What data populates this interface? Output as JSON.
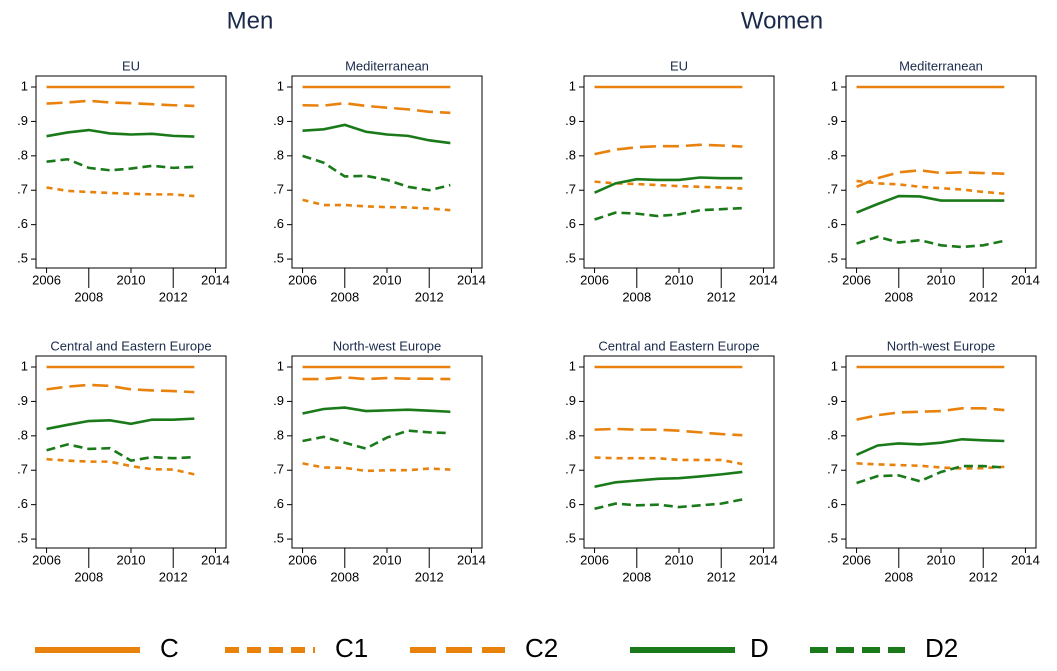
{
  "headers": [
    "Men",
    "Women"
  ],
  "chart_data": [
    {
      "type": "line",
      "title": "EU",
      "x": [
        2006,
        2007,
        2008,
        2009,
        2010,
        2011,
        2012,
        2013
      ],
      "xlim": [
        2005.5,
        2014.5
      ],
      "xticks": [
        2006,
        2008,
        2010,
        2012,
        2014
      ],
      "ylim": [
        0.474,
        1.032
      ],
      "yticks": [
        {
          "value": 0.5,
          "label": ".5"
        },
        {
          "value": 0.6,
          "label": ".6"
        },
        {
          "value": 0.7,
          "label": ".7"
        },
        {
          "value": 0.8,
          "label": ".8"
        },
        {
          "value": 0.9,
          "label": ".9"
        },
        1
      ],
      "series": [
        {
          "name": "C",
          "color": "#e8820c",
          "dash": "solid",
          "values": [
            1,
            1,
            1,
            1,
            1,
            1,
            1,
            1
          ]
        },
        {
          "name": "C1",
          "color": "#e8820c",
          "dash": "short",
          "values": [
            0.708,
            0.698,
            0.695,
            0.692,
            0.69,
            0.688,
            0.688,
            0.683
          ]
        },
        {
          "name": "C2",
          "color": "#e8820c",
          "dash": "long",
          "values": [
            0.952,
            0.955,
            0.96,
            0.955,
            0.953,
            0.95,
            0.947,
            0.945
          ]
        },
        {
          "name": "D",
          "color": "#1a7a1a",
          "dash": "solid",
          "values": [
            0.857,
            0.868,
            0.875,
            0.865,
            0.862,
            0.864,
            0.858,
            0.856
          ]
        },
        {
          "name": "D2",
          "color": "#1a7a1a",
          "dash": "medium",
          "values": [
            0.783,
            0.79,
            0.765,
            0.758,
            0.763,
            0.771,
            0.765,
            0.768
          ]
        }
      ]
    },
    {
      "type": "line",
      "title": "Mediterranean",
      "x": [
        2006,
        2007,
        2008,
        2009,
        2010,
        2011,
        2012,
        2013
      ],
      "xlim": [
        2005.5,
        2014.5
      ],
      "xticks": [
        2006,
        2008,
        2010,
        2012,
        2014
      ],
      "ylim": [
        0.474,
        1.032
      ],
      "yticks": [
        {
          "value": 0.5,
          "label": ".5"
        },
        {
          "value": 0.6,
          "label": ".6"
        },
        {
          "value": 0.7,
          "label": ".7"
        },
        {
          "value": 0.8,
          "label": ".8"
        },
        {
          "value": 0.9,
          "label": ".9"
        },
        1
      ],
      "series": [
        {
          "name": "C",
          "color": "#e8820c",
          "dash": "solid",
          "values": [
            1,
            1,
            1,
            1,
            1,
            1,
            1,
            1
          ]
        },
        {
          "name": "C1",
          "color": "#e8820c",
          "dash": "short",
          "values": [
            0.672,
            0.657,
            0.657,
            0.653,
            0.651,
            0.65,
            0.647,
            0.642
          ]
        },
        {
          "name": "C2",
          "color": "#e8820c",
          "dash": "long",
          "values": [
            0.947,
            0.946,
            0.953,
            0.945,
            0.94,
            0.935,
            0.928,
            0.925
          ]
        },
        {
          "name": "D",
          "color": "#1a7a1a",
          "dash": "solid",
          "values": [
            0.873,
            0.877,
            0.89,
            0.87,
            0.862,
            0.858,
            0.845,
            0.837
          ]
        },
        {
          "name": "D2",
          "color": "#1a7a1a",
          "dash": "medium",
          "values": [
            0.8,
            0.78,
            0.74,
            0.742,
            0.73,
            0.71,
            0.7,
            0.715
          ]
        }
      ]
    },
    {
      "type": "line",
      "title": "EU",
      "x": [
        2006,
        2007,
        2008,
        2009,
        2010,
        2011,
        2012,
        2013
      ],
      "xlim": [
        2005.5,
        2014.5
      ],
      "xticks": [
        2006,
        2008,
        2010,
        2012,
        2014
      ],
      "ylim": [
        0.474,
        1.032
      ],
      "yticks": [
        {
          "value": 0.5,
          "label": ".5"
        },
        {
          "value": 0.6,
          "label": ".6"
        },
        {
          "value": 0.7,
          "label": ".7"
        },
        {
          "value": 0.8,
          "label": ".8"
        },
        {
          "value": 0.9,
          "label": ".9"
        },
        1
      ],
      "series": [
        {
          "name": "C",
          "color": "#e8820c",
          "dash": "solid",
          "values": [
            1,
            1,
            1,
            1,
            1,
            1,
            1,
            1
          ]
        },
        {
          "name": "C1",
          "color": "#e8820c",
          "dash": "short",
          "values": [
            0.725,
            0.72,
            0.718,
            0.715,
            0.712,
            0.71,
            0.708,
            0.705
          ]
        },
        {
          "name": "C2",
          "color": "#e8820c",
          "dash": "long",
          "values": [
            0.805,
            0.818,
            0.825,
            0.828,
            0.828,
            0.832,
            0.83,
            0.827
          ]
        },
        {
          "name": "D",
          "color": "#1a7a1a",
          "dash": "solid",
          "values": [
            0.693,
            0.72,
            0.732,
            0.73,
            0.73,
            0.737,
            0.735,
            0.735
          ]
        },
        {
          "name": "D2",
          "color": "#1a7a1a",
          "dash": "medium",
          "values": [
            0.615,
            0.635,
            0.632,
            0.625,
            0.63,
            0.642,
            0.645,
            0.648
          ]
        }
      ]
    },
    {
      "type": "line",
      "title": "Mediterranean",
      "x": [
        2006,
        2007,
        2008,
        2009,
        2010,
        2011,
        2012,
        2013
      ],
      "xlim": [
        2005.5,
        2014.5
      ],
      "xticks": [
        2006,
        2008,
        2010,
        2012,
        2014
      ],
      "ylim": [
        0.474,
        1.032
      ],
      "yticks": [
        {
          "value": 0.5,
          "label": ".5"
        },
        {
          "value": 0.6,
          "label": ".6"
        },
        {
          "value": 0.7,
          "label": ".7"
        },
        {
          "value": 0.8,
          "label": ".8"
        },
        {
          "value": 0.9,
          "label": ".9"
        },
        1
      ],
      "series": [
        {
          "name": "C",
          "color": "#e8820c",
          "dash": "solid",
          "values": [
            1,
            1,
            1,
            1,
            1,
            1,
            1,
            1
          ]
        },
        {
          "name": "C1",
          "color": "#e8820c",
          "dash": "short",
          "values": [
            0.727,
            0.72,
            0.717,
            0.71,
            0.706,
            0.702,
            0.695,
            0.69
          ]
        },
        {
          "name": "C2",
          "color": "#e8820c",
          "dash": "long",
          "values": [
            0.71,
            0.735,
            0.752,
            0.758,
            0.75,
            0.752,
            0.75,
            0.748
          ]
        },
        {
          "name": "D",
          "color": "#1a7a1a",
          "dash": "solid",
          "values": [
            0.635,
            0.66,
            0.683,
            0.682,
            0.67,
            0.67,
            0.67,
            0.67
          ]
        },
        {
          "name": "D2",
          "color": "#1a7a1a",
          "dash": "medium",
          "values": [
            0.545,
            0.565,
            0.548,
            0.555,
            0.54,
            0.535,
            0.54,
            0.553
          ]
        }
      ]
    },
    {
      "type": "line",
      "title": "Central and Eastern Europe",
      "x": [
        2006,
        2007,
        2008,
        2009,
        2010,
        2011,
        2012,
        2013
      ],
      "xlim": [
        2005.5,
        2014.5
      ],
      "xticks": [
        2006,
        2008,
        2010,
        2012,
        2014
      ],
      "ylim": [
        0.474,
        1.032
      ],
      "yticks": [
        {
          "value": 0.5,
          "label": ".5"
        },
        {
          "value": 0.6,
          "label": ".6"
        },
        {
          "value": 0.7,
          "label": ".7"
        },
        {
          "value": 0.8,
          "label": ".8"
        },
        {
          "value": 0.9,
          "label": ".9"
        },
        1
      ],
      "series": [
        {
          "name": "C",
          "color": "#e8820c",
          "dash": "solid",
          "values": [
            1,
            1,
            1,
            1,
            1,
            1,
            1,
            1
          ]
        },
        {
          "name": "C1",
          "color": "#e8820c",
          "dash": "short",
          "values": [
            0.732,
            0.728,
            0.725,
            0.725,
            0.712,
            0.703,
            0.702,
            0.688
          ]
        },
        {
          "name": "C2",
          "color": "#e8820c",
          "dash": "long",
          "values": [
            0.935,
            0.943,
            0.948,
            0.945,
            0.935,
            0.932,
            0.93,
            0.927
          ]
        },
        {
          "name": "D",
          "color": "#1a7a1a",
          "dash": "solid",
          "values": [
            0.82,
            0.832,
            0.843,
            0.845,
            0.835,
            0.847,
            0.847,
            0.85
          ]
        },
        {
          "name": "D2",
          "color": "#1a7a1a",
          "dash": "medium",
          "values": [
            0.758,
            0.775,
            0.762,
            0.764,
            0.728,
            0.738,
            0.735,
            0.738
          ]
        }
      ]
    },
    {
      "type": "line",
      "title": "North-west Europe",
      "x": [
        2006,
        2007,
        2008,
        2009,
        2010,
        2011,
        2012,
        2013
      ],
      "xlim": [
        2005.5,
        2014.5
      ],
      "xticks": [
        2006,
        2008,
        2010,
        2012,
        2014
      ],
      "ylim": [
        0.474,
        1.032
      ],
      "yticks": [
        {
          "value": 0.5,
          "label": ".5"
        },
        {
          "value": 0.6,
          "label": ".6"
        },
        {
          "value": 0.7,
          "label": ".7"
        },
        {
          "value": 0.8,
          "label": ".8"
        },
        {
          "value": 0.9,
          "label": ".9"
        },
        1
      ],
      "series": [
        {
          "name": "C",
          "color": "#e8820c",
          "dash": "solid",
          "values": [
            1,
            1,
            1,
            1,
            1,
            1,
            1,
            1
          ]
        },
        {
          "name": "C1",
          "color": "#e8820c",
          "dash": "short",
          "values": [
            0.72,
            0.708,
            0.707,
            0.698,
            0.7,
            0.7,
            0.705,
            0.702
          ]
        },
        {
          "name": "C2",
          "color": "#e8820c",
          "dash": "long",
          "values": [
            0.965,
            0.965,
            0.97,
            0.965,
            0.968,
            0.966,
            0.966,
            0.965
          ]
        },
        {
          "name": "D",
          "color": "#1a7a1a",
          "dash": "solid",
          "values": [
            0.865,
            0.878,
            0.882,
            0.872,
            0.874,
            0.876,
            0.873,
            0.87
          ]
        },
        {
          "name": "D2",
          "color": "#1a7a1a",
          "dash": "medium",
          "values": [
            0.785,
            0.797,
            0.78,
            0.763,
            0.795,
            0.815,
            0.81,
            0.808
          ]
        }
      ]
    },
    {
      "type": "line",
      "title": "Central and Eastern Europe",
      "x": [
        2006,
        2007,
        2008,
        2009,
        2010,
        2011,
        2012,
        2013
      ],
      "xlim": [
        2005.5,
        2014.5
      ],
      "xticks": [
        2006,
        2008,
        2010,
        2012,
        2014
      ],
      "ylim": [
        0.474,
        1.032
      ],
      "yticks": [
        {
          "value": 0.5,
          "label": ".5"
        },
        {
          "value": 0.6,
          "label": ".6"
        },
        {
          "value": 0.7,
          "label": ".7"
        },
        {
          "value": 0.8,
          "label": ".8"
        },
        {
          "value": 0.9,
          "label": ".9"
        },
        1
      ],
      "series": [
        {
          "name": "C",
          "color": "#e8820c",
          "dash": "solid",
          "values": [
            1,
            1,
            1,
            1,
            1,
            1,
            1,
            1
          ]
        },
        {
          "name": "C1",
          "color": "#e8820c",
          "dash": "short",
          "values": [
            0.737,
            0.735,
            0.735,
            0.735,
            0.73,
            0.73,
            0.73,
            0.718
          ]
        },
        {
          "name": "C2",
          "color": "#e8820c",
          "dash": "long",
          "values": [
            0.818,
            0.82,
            0.818,
            0.818,
            0.815,
            0.81,
            0.805,
            0.802
          ]
        },
        {
          "name": "D",
          "color": "#1a7a1a",
          "dash": "solid",
          "values": [
            0.652,
            0.665,
            0.67,
            0.675,
            0.677,
            0.682,
            0.688,
            0.695
          ]
        },
        {
          "name": "D2",
          "color": "#1a7a1a",
          "dash": "medium",
          "values": [
            0.588,
            0.603,
            0.598,
            0.6,
            0.593,
            0.598,
            0.603,
            0.615
          ]
        }
      ]
    },
    {
      "type": "line",
      "title": "North-west Europe",
      "x": [
        2006,
        2007,
        2008,
        2009,
        2010,
        2011,
        2012,
        2013
      ],
      "xlim": [
        2005.5,
        2014.5
      ],
      "xticks": [
        2006,
        2008,
        2010,
        2012,
        2014
      ],
      "ylim": [
        0.474,
        1.032
      ],
      "yticks": [
        {
          "value": 0.5,
          "label": ".5"
        },
        {
          "value": 0.6,
          "label": ".6"
        },
        {
          "value": 0.7,
          "label": ".7"
        },
        {
          "value": 0.8,
          "label": ".8"
        },
        {
          "value": 0.9,
          "label": ".9"
        },
        1
      ],
      "series": [
        {
          "name": "C",
          "color": "#e8820c",
          "dash": "solid",
          "values": [
            1,
            1,
            1,
            1,
            1,
            1,
            1,
            1
          ]
        },
        {
          "name": "C1",
          "color": "#e8820c",
          "dash": "short",
          "values": [
            0.72,
            0.717,
            0.715,
            0.713,
            0.708,
            0.705,
            0.706,
            0.71
          ]
        },
        {
          "name": "C2",
          "color": "#e8820c",
          "dash": "long",
          "values": [
            0.847,
            0.86,
            0.868,
            0.87,
            0.872,
            0.88,
            0.88,
            0.875
          ]
        },
        {
          "name": "D",
          "color": "#1a7a1a",
          "dash": "solid",
          "values": [
            0.745,
            0.772,
            0.778,
            0.775,
            0.78,
            0.79,
            0.787,
            0.785
          ]
        },
        {
          "name": "D2",
          "color": "#1a7a1a",
          "dash": "medium",
          "values": [
            0.663,
            0.683,
            0.685,
            0.668,
            0.695,
            0.712,
            0.712,
            0.708
          ]
        }
      ]
    }
  ]
}
